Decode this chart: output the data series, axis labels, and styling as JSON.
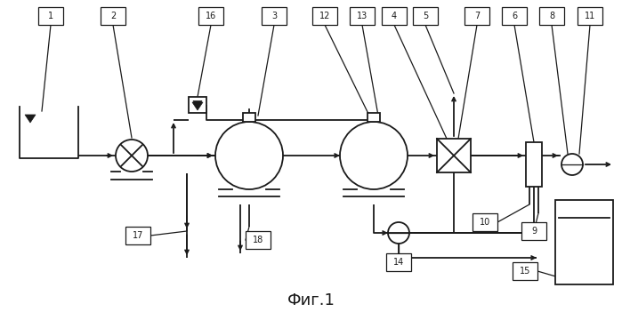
{
  "bg_color": "#ffffff",
  "line_color": "#1a1a1a",
  "caption": "Фиг.1",
  "figsize": [
    6.99,
    3.51
  ],
  "dpi": 100
}
